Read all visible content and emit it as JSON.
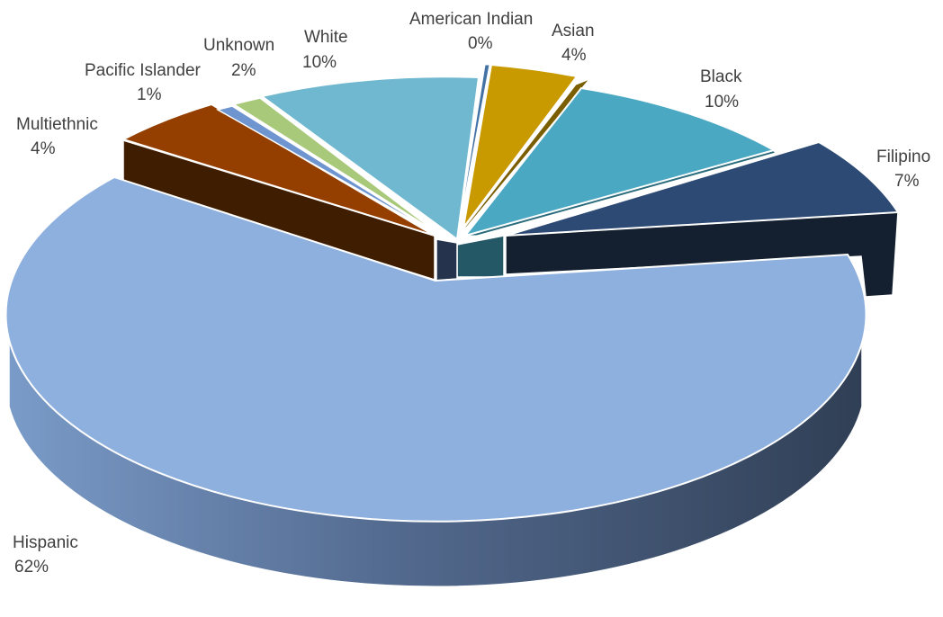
{
  "chart_data": {
    "type": "pie",
    "style": "3d-exploded",
    "categories": [
      "American Indian",
      "Asian",
      "Black",
      "Filipino",
      "Hispanic",
      "Multiethnic",
      "Pacific Islander",
      "Unknown",
      "White"
    ],
    "values": [
      0.4,
      4,
      10,
      7,
      62,
      4,
      1,
      2,
      10
    ],
    "labels": {
      "american_indian": {
        "name": "American Indian",
        "pct": "0%"
      },
      "asian": {
        "name": "Asian",
        "pct": "4%"
      },
      "black": {
        "name": "Black",
        "pct": "10%"
      },
      "filipino": {
        "name": "Filipino",
        "pct": "7%"
      },
      "hispanic": {
        "name": "Hispanic",
        "pct": "62%"
      },
      "multiethnic": {
        "name": "Multiethnic",
        "pct": "4%"
      },
      "pacific_islander": {
        "name": "Pacific Islander",
        "pct": "1%"
      },
      "unknown": {
        "name": "Unknown",
        "pct": "2%"
      },
      "white": {
        "name": "White",
        "pct": "10%"
      }
    },
    "colors": {
      "american_indian": "#4472a4",
      "asian": "#c99a00",
      "black": "#4aa8c3",
      "filipino": "#2c4a74",
      "hispanic": "#8eb0de",
      "multiethnic": "#943f00",
      "pacific_islander": "#6e95cf",
      "unknown": "#a9c97a",
      "white": "#6fb8cf"
    },
    "title": "",
    "legend": "none"
  }
}
